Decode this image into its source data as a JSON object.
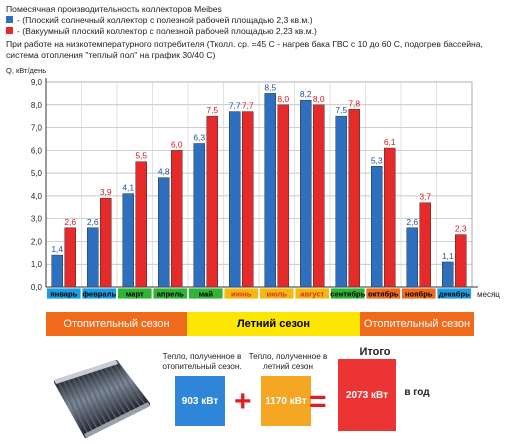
{
  "header": {
    "title": "Помесячная производительность коллекторов Meibes",
    "legend": [
      {
        "label": "- (Плоский солнечный коллектор с полезной рабочей площадью 2,3 кв.м.)",
        "color": "#2e6fc0"
      },
      {
        "label": "- (Вакуумный плоский коллектор с полезной рабочей площадью 2,23 кв.м.)",
        "color": "#e62a2a"
      }
    ],
    "note_line1": "При работе на низкотемпературного потребителя (Тколл. ср. =45 С - нагрев бака ГВС с 10 до 60 С, подогрев бассейна,",
    "note_line2": "система отопления \"теплый пол\" на график 30/40 С)"
  },
  "chart_data": {
    "type": "bar",
    "ylabel": "Q, кВт/день",
    "xlabel": "месяц",
    "ylim": [
      0,
      9
    ],
    "yticks": [
      "0,0",
      "1,0",
      "2,0",
      "3,0",
      "4,0",
      "5,0",
      "6,0",
      "7,0",
      "8,0",
      "9,0"
    ],
    "grid": true,
    "categories": [
      "январь",
      "февраль",
      "март",
      "апрель",
      "май",
      "июнь",
      "июль",
      "август",
      "сентябрь",
      "октябрь",
      "ноябрь",
      "декабрь"
    ],
    "category_colors": [
      "#1d9ee0",
      "#1d9ee0",
      "#2fb536",
      "#2fb536",
      "#2fb536",
      "#f2b90f",
      "#f2b90f",
      "#f2b90f",
      "#2fb536",
      "#f06a1c",
      "#f06a1c",
      "#1d9ee0"
    ],
    "category_text_colors": [
      "#000000",
      "#000000",
      "#000000",
      "#000000",
      "#000000",
      "#e62a2a",
      "#e62a2a",
      "#e62a2a",
      "#000000",
      "#000000",
      "#000000",
      "#000000"
    ],
    "series": [
      {
        "values": [
          1.4,
          2.6,
          4.1,
          4.8,
          6.3,
          7.7,
          8.5,
          8.2,
          7.5,
          5.3,
          2.6,
          1.1
        ],
        "labels": [
          "1,4",
          "2,6",
          "4,1",
          "4,8",
          "6,3",
          "7,7",
          "8,5",
          "8,2",
          "7,5",
          "5,3",
          "2,6",
          "1,1"
        ],
        "color": "#2e6fc0",
        "label_color": "#1f4f9a"
      },
      {
        "values": [
          2.6,
          3.9,
          5.5,
          6.0,
          7.5,
          7.7,
          8.0,
          8.0,
          7.8,
          6.1,
          3.7,
          2.3
        ],
        "labels": [
          "2,6",
          "3,9",
          "5,5",
          "6,0",
          "7,5",
          "7,7",
          "8,0",
          "8,0",
          "7,8",
          "6,1",
          "3,7",
          "2,3"
        ],
        "color": "#e62a2a",
        "label_color": "#d0181b"
      }
    ]
  },
  "seasons": {
    "heating_left": "Отопительный сезон",
    "summer": "Летний сезон",
    "heating_right": "Отопительный сезон",
    "heating_color": "#f06a1c",
    "summer_color": "#fde603"
  },
  "summary": {
    "heating_caption": "Тепло, полученное в отопительный сезон.",
    "heating_value": "903 кВт",
    "summer_caption": "Тепло, полученное в летний сезон",
    "summer_value": "1170 кВт",
    "total_caption": "Итого",
    "total_value": "2073 кВт",
    "per_year": "в год",
    "plus": "+",
    "equals": "=",
    "heating_box_color": "#2f86d8",
    "summer_box_color": "#f5a623",
    "total_box_color": "#ec3434"
  }
}
